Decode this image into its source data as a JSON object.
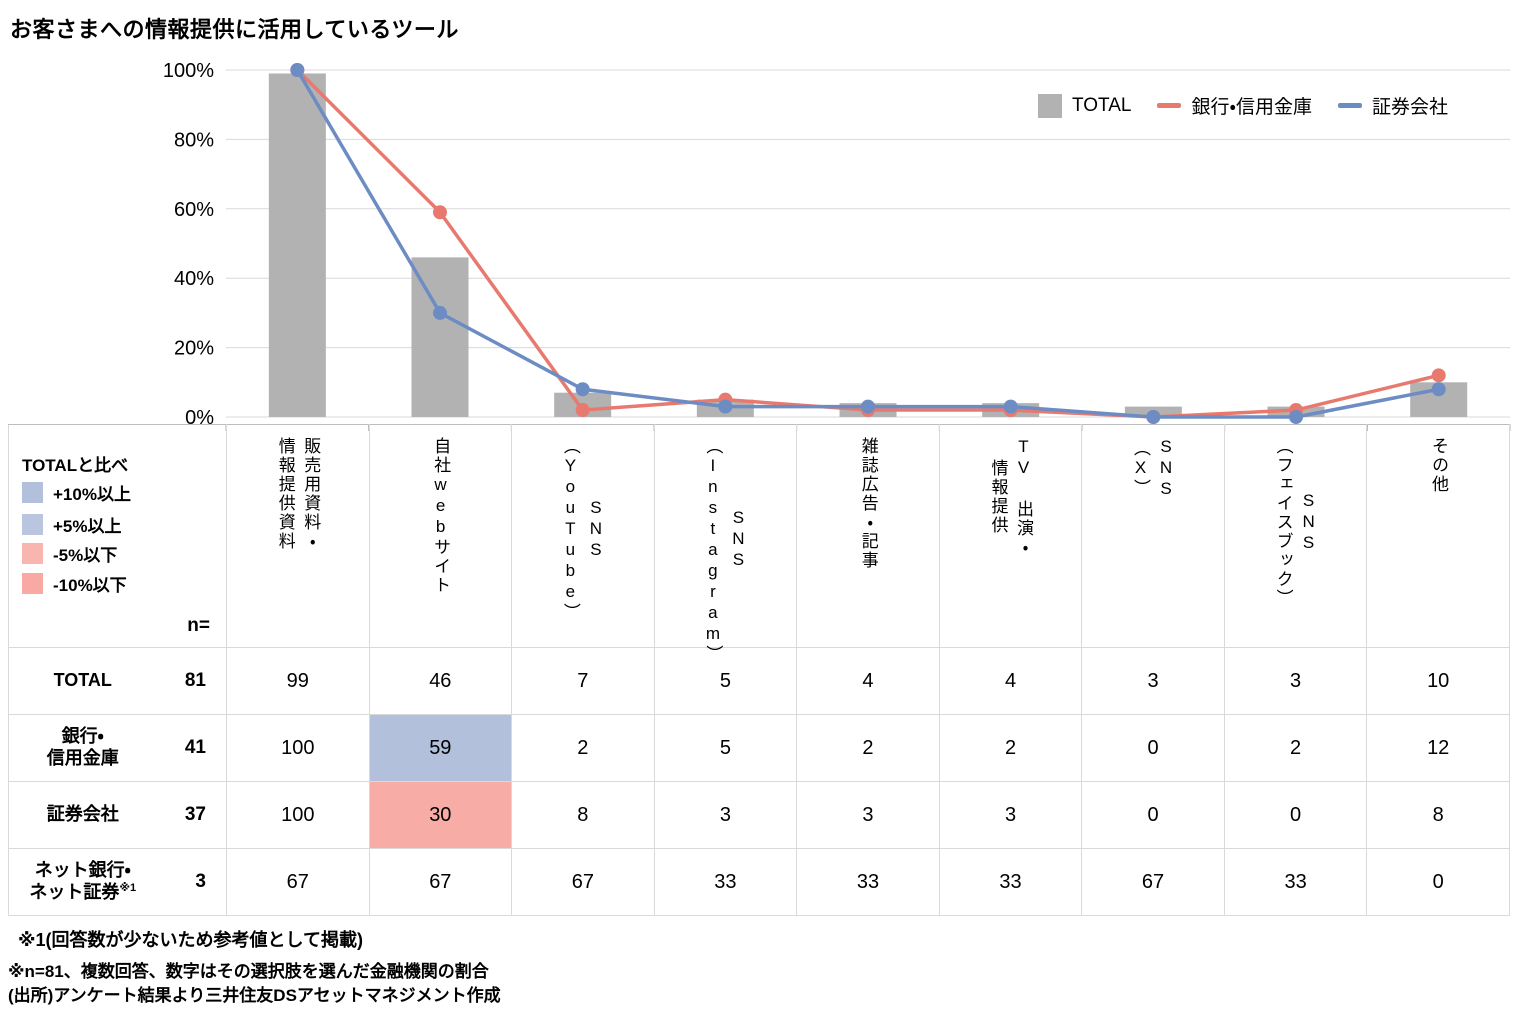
{
  "title": "お客さまへの情報提供に活用しているツール",
  "chart_data": {
    "type": "bar+line",
    "categories": [
      "販売用資料・\n情報提供資料",
      "自社webサイト",
      "SNS\n（YouTube）",
      "SNS\n（Instagram）",
      "雑誌広告・記事",
      "TV 出演・\n情報提供",
      "SNS\n（X）",
      "SNS\n（フェイスブック）",
      "その他"
    ],
    "series": [
      {
        "name": "TOTAL",
        "type": "bar",
        "color": "#b2b2b2",
        "values": [
          99,
          46,
          7,
          5,
          4,
          4,
          3,
          3,
          10
        ]
      },
      {
        "name": "銀行・信用金庫",
        "type": "line",
        "color": "#e8796f",
        "values": [
          100,
          59,
          2,
          5,
          2,
          2,
          0,
          2,
          12
        ]
      },
      {
        "name": "証券会社",
        "type": "line",
        "color": "#6d8cc3",
        "values": [
          100,
          30,
          8,
          3,
          3,
          3,
          0,
          0,
          8
        ]
      }
    ],
    "ylim": [
      0,
      100
    ],
    "yticks": [
      "0%",
      "20%",
      "40%",
      "60%",
      "80%",
      "100%"
    ],
    "grid": true,
    "grid_color": "#d9d9d9",
    "legend_position": "top-right"
  },
  "compare_legend": {
    "title": "TOTALと比べ",
    "items": [
      {
        "label": "+10%以上",
        "color": "#b2c0db"
      },
      {
        "label": "+5%以上",
        "color": "#bac6e0"
      },
      {
        "label": "-5%以下",
        "color": "#f9b6b1"
      },
      {
        "label": "-10%以下",
        "color": "#f8a9a3"
      }
    ],
    "n_label": "n="
  },
  "table": {
    "columns": [
      "販売用資料・\n情報提供資料",
      "自社webサイト",
      "SNS\n（YouTube）",
      "SNS\n（Instagram）",
      "雑誌広告・記事",
      "TV 出演・\n情報提供",
      "SNS\n（X）",
      "SNS\n（フェイスブック）",
      "その他"
    ],
    "rows": [
      {
        "label": "TOTAL",
        "n": 81,
        "values": [
          99,
          46,
          7,
          5,
          4,
          4,
          3,
          3,
          10
        ],
        "highlights": {}
      },
      {
        "label": "銀行・\n信用金庫",
        "n": 41,
        "values": [
          100,
          59,
          2,
          5,
          2,
          2,
          0,
          2,
          12
        ],
        "highlights": {
          "1": "#b2c0db"
        }
      },
      {
        "label": "証券会社",
        "n": 37,
        "values": [
          100,
          30,
          8,
          3,
          3,
          3,
          0,
          0,
          8
        ],
        "highlights": {
          "1": "#f8aca6"
        }
      },
      {
        "label": "ネット銀行・\nネット証券",
        "suffix": "※1",
        "n": 3,
        "values": [
          67,
          67,
          67,
          33,
          33,
          33,
          67,
          33,
          0
        ],
        "highlights": {}
      }
    ]
  },
  "footnotes": [
    "※1(回答数が少ないため参考値として掲載)",
    "※n=81、複数回答、数字はその選択肢を選んだ金融機関の割合",
    "(出所)アンケート結果より三井住友DSアセットマネジメント作成"
  ]
}
